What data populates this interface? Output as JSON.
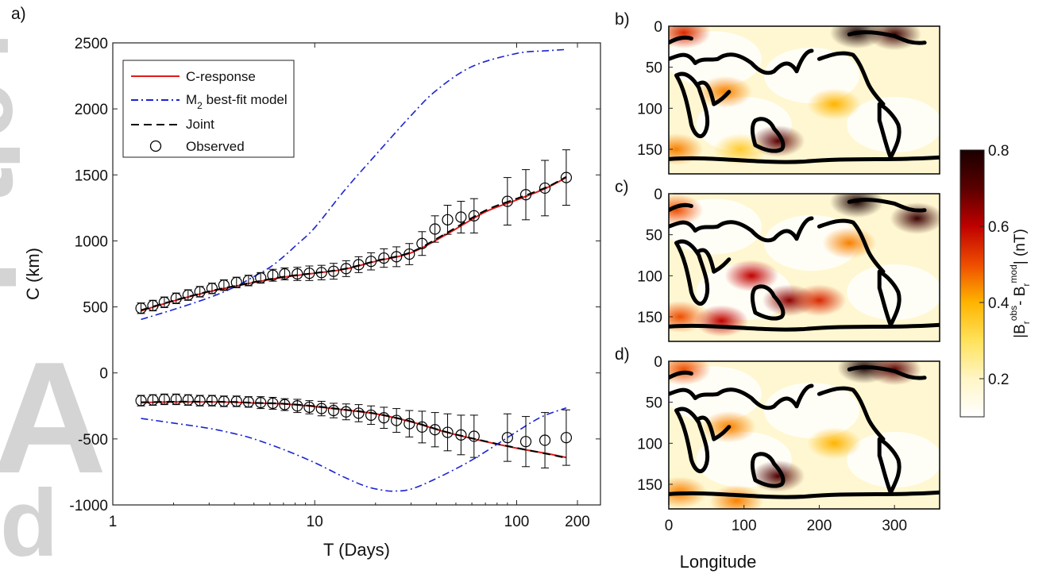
{
  "chart_data": [
    {
      "type": "line",
      "panel_label": "a)",
      "xlabel": "T (Days)",
      "ylabel": "C (km)",
      "xscale": "log",
      "xlim": [
        1,
        260
      ],
      "ylim": [
        -1000,
        2500
      ],
      "xticks": [
        1,
        10,
        100,
        200
      ],
      "xtick_labels": [
        "1",
        "10",
        "100",
        "200"
      ],
      "yticks": [
        -1000,
        -500,
        0,
        500,
        1000,
        1500,
        2000,
        2500
      ],
      "ytick_labels": [
        "-1000",
        "-500",
        "0",
        "500",
        "1000",
        "1500",
        "2000",
        "2500"
      ],
      "legend_position": "top-left",
      "legend": [
        {
          "label": "C-response",
          "style": "solid",
          "color": "#e01b1b"
        },
        {
          "label": "M",
          "subscript": "2",
          "label_rest": " best-fit model",
          "style": "dashdot",
          "color": "#1a24d0"
        },
        {
          "label": "Joint",
          "style": "dashed",
          "color": "#000000"
        },
        {
          "label": "Observed",
          "style": "circle",
          "color": "#000000"
        }
      ],
      "observed_periods": [
        1.38,
        1.58,
        1.8,
        2.06,
        2.36,
        2.7,
        3.1,
        3.55,
        4.1,
        4.7,
        5.4,
        6.2,
        7.1,
        8.2,
        9.4,
        10.8,
        12.4,
        14.3,
        16.5,
        19,
        22,
        25.4,
        29.4,
        34,
        39.4,
        45.5,
        53,
        61.5,
        90,
        111,
        138,
        176
      ],
      "observed_real": [
        490,
        510,
        535,
        565,
        590,
        615,
        640,
        665,
        685,
        700,
        720,
        740,
        750,
        750,
        755,
        760,
        770,
        790,
        820,
        845,
        870,
        880,
        900,
        980,
        1090,
        1160,
        1180,
        1190,
        1300,
        1350,
        1400,
        1480
      ],
      "observed_real_err": [
        40,
        40,
        40,
        40,
        40,
        40,
        40,
        40,
        40,
        40,
        40,
        45,
        45,
        50,
        55,
        55,
        60,
        60,
        60,
        65,
        70,
        75,
        80,
        90,
        100,
        110,
        120,
        130,
        180,
        190,
        210,
        210
      ],
      "observed_imag": [
        -210,
        -205,
        -200,
        -200,
        -205,
        -210,
        -210,
        -215,
        -215,
        -220,
        -225,
        -230,
        -240,
        -250,
        -260,
        -270,
        -285,
        -295,
        -305,
        -320,
        -340,
        -360,
        -385,
        -410,
        -430,
        -450,
        -470,
        -480,
        -490,
        -520,
        -510,
        -490
      ],
      "observed_imag_err": [
        40,
        40,
        40,
        40,
        40,
        40,
        40,
        40,
        40,
        40,
        45,
        45,
        45,
        50,
        50,
        55,
        55,
        60,
        65,
        70,
        80,
        90,
        100,
        120,
        130,
        140,
        150,
        160,
        180,
        190,
        210,
        210
      ],
      "series": [
        {
          "name": "C-response",
          "part": "real",
          "x": [
            1.38,
            2,
            3,
            4,
            5,
            7,
            10,
            14,
            20,
            30,
            45,
            70,
            100,
            140,
            176
          ],
          "y": [
            470,
            545,
            615,
            655,
            685,
            725,
            755,
            785,
            845,
            910,
            1050,
            1220,
            1310,
            1400,
            1480
          ]
        },
        {
          "name": "Joint",
          "part": "real",
          "x": [
            1.38,
            2,
            3,
            4,
            5,
            7,
            10,
            14,
            20,
            30,
            45,
            70,
            100,
            140,
            176
          ],
          "y": [
            475,
            548,
            618,
            658,
            688,
            728,
            757,
            788,
            848,
            915,
            1060,
            1230,
            1320,
            1405,
            1485
          ]
        },
        {
          "name": "M2 best-fit model",
          "part": "real",
          "x": [
            1.38,
            2,
            3,
            4,
            5,
            6,
            7,
            8,
            10,
            14,
            20,
            30,
            40,
            60,
            100,
            140,
            176
          ],
          "y": [
            405,
            480,
            570,
            650,
            730,
            800,
            880,
            960,
            1100,
            1380,
            1650,
            1950,
            2140,
            2320,
            2420,
            2440,
            2450
          ]
        },
        {
          "name": "C-response",
          "part": "imag",
          "x": [
            1.38,
            2,
            3,
            4,
            5,
            7,
            10,
            14,
            20,
            30,
            45,
            70,
            100,
            140,
            176
          ],
          "y": [
            -225,
            -220,
            -220,
            -222,
            -228,
            -235,
            -255,
            -280,
            -310,
            -370,
            -450,
            -520,
            -570,
            -610,
            -640
          ]
        },
        {
          "name": "Joint",
          "part": "imag",
          "x": [
            1.38,
            2,
            3,
            4,
            5,
            7,
            10,
            14,
            20,
            30,
            45,
            70,
            100,
            140,
            176
          ],
          "y": [
            -222,
            -218,
            -218,
            -220,
            -226,
            -233,
            -252,
            -278,
            -308,
            -368,
            -448,
            -518,
            -568,
            -612,
            -645
          ]
        },
        {
          "name": "M2 best-fit model",
          "part": "imag",
          "x": [
            1.38,
            2,
            3,
            4,
            5,
            7,
            10,
            14,
            18,
            22,
            25,
            30,
            40,
            60,
            90,
            130,
            176
          ],
          "y": [
            -345,
            -380,
            -420,
            -460,
            -500,
            -580,
            -680,
            -790,
            -860,
            -890,
            -895,
            -880,
            -800,
            -660,
            -490,
            -340,
            -265
          ]
        }
      ]
    },
    {
      "type": "heatmap",
      "panel_labels": [
        "b)",
        "c)",
        "d)"
      ],
      "xlabel": "Longitude",
      "xticks": [
        0,
        100,
        200,
        300
      ],
      "yticks": [
        0,
        50,
        100,
        150
      ],
      "xlim": [
        0,
        360
      ],
      "ylim": [
        0,
        180
      ],
      "colorbar": {
        "label_parts": [
          "|B",
          "r",
          "obs",
          "- B",
          "r",
          "mod",
          "| (nT)"
        ],
        "ticks": [
          0.8,
          0.6,
          0.4,
          0.2
        ],
        "range": [
          0.1,
          0.8
        ],
        "colors": [
          "#ffffff",
          "#fff5c6",
          "#ffe25a",
          "#ffb400",
          "#ee4d00",
          "#c00000",
          "#5a0000",
          "#1a0000"
        ]
      },
      "maps": [
        {
          "panel": "b)",
          "hotspots": [
            [
              250,
              8,
              0.8
            ],
            [
              300,
              10,
              0.75
            ],
            [
              20,
              8,
              0.55
            ],
            [
              145,
              140,
              0.7
            ],
            [
              10,
              150,
              0.45
            ],
            [
              95,
              150,
              0.35
            ],
            [
              220,
              95,
              0.4
            ],
            [
              75,
              80,
              0.45
            ]
          ]
        },
        {
          "panel": "c)",
          "hotspots": [
            [
              250,
              10,
              0.8
            ],
            [
              330,
              30,
              0.75
            ],
            [
              10,
              20,
              0.5
            ],
            [
              110,
              100,
              0.6
            ],
            [
              160,
              130,
              0.65
            ],
            [
              70,
              155,
              0.6
            ],
            [
              15,
              150,
              0.5
            ],
            [
              200,
              130,
              0.55
            ],
            [
              240,
              60,
              0.45
            ]
          ]
        },
        {
          "panel": "d)",
          "hotspots": [
            [
              260,
              8,
              0.85
            ],
            [
              300,
              10,
              0.7
            ],
            [
              20,
              10,
              0.5
            ],
            [
              145,
              140,
              0.72
            ],
            [
              15,
              160,
              0.45
            ],
            [
              90,
              170,
              0.45
            ],
            [
              80,
              80,
              0.45
            ],
            [
              220,
              100,
              0.4
            ]
          ]
        }
      ]
    }
  ],
  "watermark": [
    "d",
    "A",
    "r",
    "t",
    "i",
    "c",
    "l"
  ]
}
